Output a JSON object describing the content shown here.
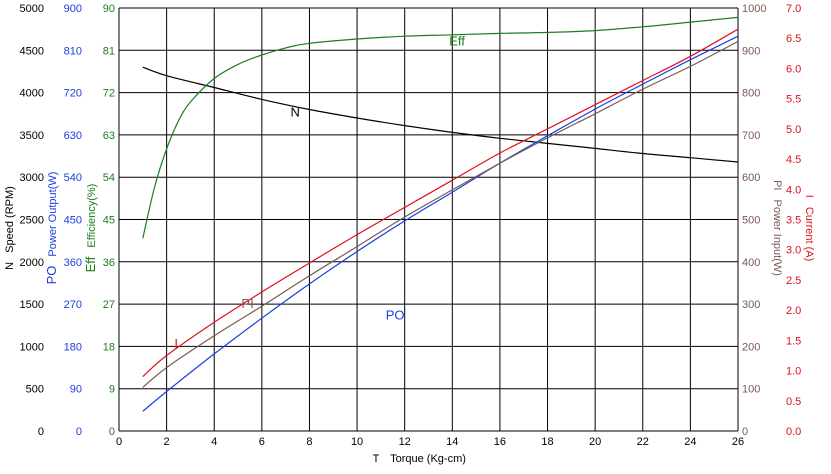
{
  "chart_data": {
    "type": "line",
    "title": "",
    "xlabel": {
      "symbol": "T",
      "text": "Torque (Kg-cm)"
    },
    "xlim": [
      0,
      26
    ],
    "xticks": [
      0,
      2,
      4,
      6,
      8,
      10,
      12,
      14,
      16,
      18,
      20,
      22,
      24,
      26
    ],
    "grid": true,
    "axes": [
      {
        "id": "N",
        "symbol": "N",
        "label": "Speed (RPM)",
        "side": "left",
        "color": "#000000",
        "min": 0,
        "max": 5000,
        "ticks": [
          "0",
          "500",
          "1000",
          "1500",
          "2000",
          "2500",
          "3000",
          "3500",
          "4000",
          "4500",
          "5000"
        ]
      },
      {
        "id": "PO",
        "symbol": "PO",
        "label": "Power Output(W)",
        "side": "left",
        "color": "#1a3fe0",
        "min": 0,
        "max": 900,
        "ticks": [
          "0",
          "90",
          "180",
          "270",
          "360",
          "450",
          "540",
          "630",
          "720",
          "810",
          "900"
        ]
      },
      {
        "id": "Eff",
        "symbol": "Eff",
        "label": "Efficiency(%)",
        "side": "left",
        "color": "#1e7d1e",
        "min": 0,
        "max": 90,
        "ticks": [
          "0",
          "9",
          "18",
          "27",
          "36",
          "45",
          "54",
          "63",
          "72",
          "81",
          "90"
        ]
      },
      {
        "id": "PI",
        "symbol": "PI",
        "label": "Power Input(W)",
        "side": "right",
        "color": "#7a5a55",
        "min": 0,
        "max": 1000,
        "ticks": [
          "0",
          "100",
          "200",
          "300",
          "400",
          "500",
          "600",
          "700",
          "800",
          "900",
          "1000"
        ]
      },
      {
        "id": "I",
        "symbol": "I",
        "label": "Current (A)",
        "side": "right",
        "color": "#e0101c",
        "min": 0,
        "max": 7,
        "ticks": [
          "0.0",
          "0.5",
          "1.0",
          "1.5",
          "2.0",
          "2.5",
          "3.0",
          "3.5",
          "4.0",
          "4.5",
          "5.0",
          "5.5",
          "6.0",
          "6.5",
          "7.0"
        ]
      }
    ],
    "series": [
      {
        "name": "N",
        "axis": "N",
        "color": "#000000",
        "label_at": [
          7.4,
          3720
        ],
        "x": [
          1,
          2,
          4,
          6,
          8,
          10,
          12,
          14,
          16,
          18,
          20,
          22,
          24,
          26
        ],
        "y": [
          4300,
          4200,
          4060,
          3920,
          3800,
          3700,
          3610,
          3530,
          3460,
          3400,
          3340,
          3280,
          3230,
          3180
        ]
      },
      {
        "name": "PO",
        "axis": "PO",
        "color": "#1a3fe0",
        "label_at": [
          11.6,
          237
        ],
        "x": [
          1,
          2,
          4,
          6,
          8,
          10,
          12,
          14,
          16,
          18,
          20,
          22,
          24,
          26
        ],
        "y": [
          42,
          84,
          164,
          240,
          313,
          382,
          447,
          508,
          570,
          628,
          685,
          738,
          790,
          840
        ]
      },
      {
        "name": "Eff",
        "axis": "Eff",
        "color": "#1e7d1e",
        "label_at": [
          14.2,
          82
        ],
        "x": [
          1,
          1.5,
          2,
          2.5,
          3,
          4,
          5,
          6,
          7,
          8,
          10,
          12,
          14,
          16,
          18,
          20,
          22,
          24,
          26
        ],
        "y": [
          41,
          52,
          60,
          66,
          70,
          75,
          78,
          80,
          81.5,
          82.5,
          83.4,
          84,
          84.3,
          84.6,
          84.8,
          85.2,
          86,
          87,
          88
        ]
      },
      {
        "name": "PI",
        "axis": "PI",
        "color": "#7a5a55",
        "label_at": [
          5.4,
          291
        ],
        "x": [
          1,
          2,
          4,
          6,
          8,
          10,
          12,
          14,
          16,
          18,
          20,
          22,
          24,
          26
        ],
        "y": [
          103,
          150,
          225,
          295,
          367,
          436,
          506,
          570,
          633,
          693,
          750,
          808,
          862,
          921
        ]
      },
      {
        "name": "I",
        "axis": "I",
        "color": "#e0101c",
        "label_at": [
          2.4,
          1.37
        ],
        "x": [
          1,
          2,
          4,
          6,
          8,
          10,
          12,
          14,
          16,
          18,
          20,
          22,
          24,
          26
        ],
        "y": [
          0.9,
          1.25,
          1.8,
          2.3,
          2.78,
          3.25,
          3.7,
          4.15,
          4.6,
          5.0,
          5.4,
          5.8,
          6.2,
          6.65
        ]
      }
    ]
  }
}
